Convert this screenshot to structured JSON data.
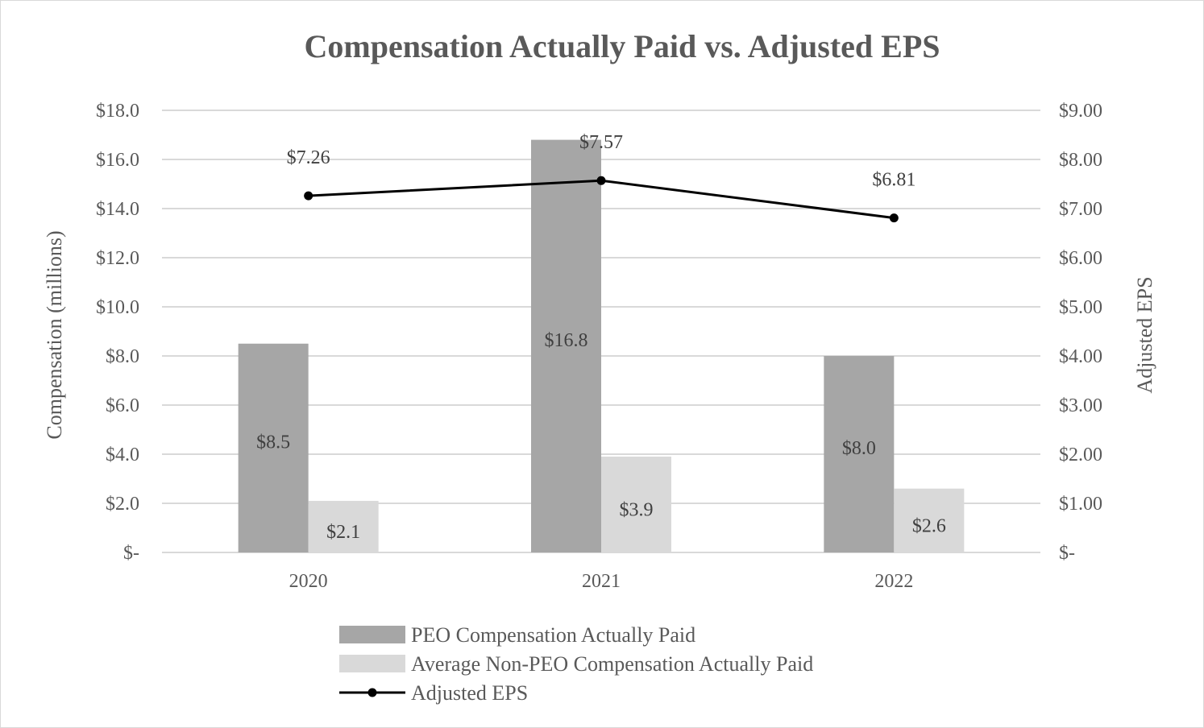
{
  "chart_data": {
    "type": "bar",
    "title": "Compensation Actually Paid vs. Adjusted EPS",
    "categories": [
      "2020",
      "2021",
      "2022"
    ],
    "ylabel": "Compensation (millions)",
    "y2label": "Adjusted EPS",
    "ylim": [
      0,
      18
    ],
    "y2lim": [
      0,
      9
    ],
    "yticks": [
      0,
      2,
      4,
      6,
      8,
      10,
      12,
      14,
      16,
      18
    ],
    "yticklabels": [
      "$-",
      "$2.0",
      "$4.0",
      "$6.0",
      "$8.0",
      "$10.0",
      "$12.0",
      "$14.0",
      "$16.0",
      "$18.0"
    ],
    "y2ticks": [
      0,
      1,
      2,
      3,
      4,
      5,
      6,
      7,
      8,
      9
    ],
    "y2ticklabels": [
      "$-",
      "$1.00",
      "$2.00",
      "$3.00",
      "$4.00",
      "$5.00",
      "$6.00",
      "$7.00",
      "$8.00",
      "$9.00"
    ],
    "grid": true,
    "legend_position": "bottom",
    "series": [
      {
        "name": "PEO Compensation Actually Paid",
        "type": "bar",
        "axis": "left",
        "color": "#a6a6a6",
        "values": [
          8.5,
          16.8,
          8.0
        ],
        "labels": [
          "$8.5",
          "$16.8",
          "$8.0"
        ]
      },
      {
        "name": "Average Non-PEO Compensation Actually Paid",
        "type": "bar",
        "axis": "left",
        "color": "#d9d9d9",
        "values": [
          2.1,
          3.9,
          2.6
        ],
        "labels": [
          "$2.1",
          "$3.9",
          "$2.6"
        ]
      },
      {
        "name": "Adjusted EPS",
        "type": "line",
        "axis": "right",
        "color": "#000000",
        "values": [
          7.26,
          7.57,
          6.81
        ],
        "labels": [
          "$7.26",
          "$7.57",
          "$6.81"
        ]
      }
    ]
  }
}
